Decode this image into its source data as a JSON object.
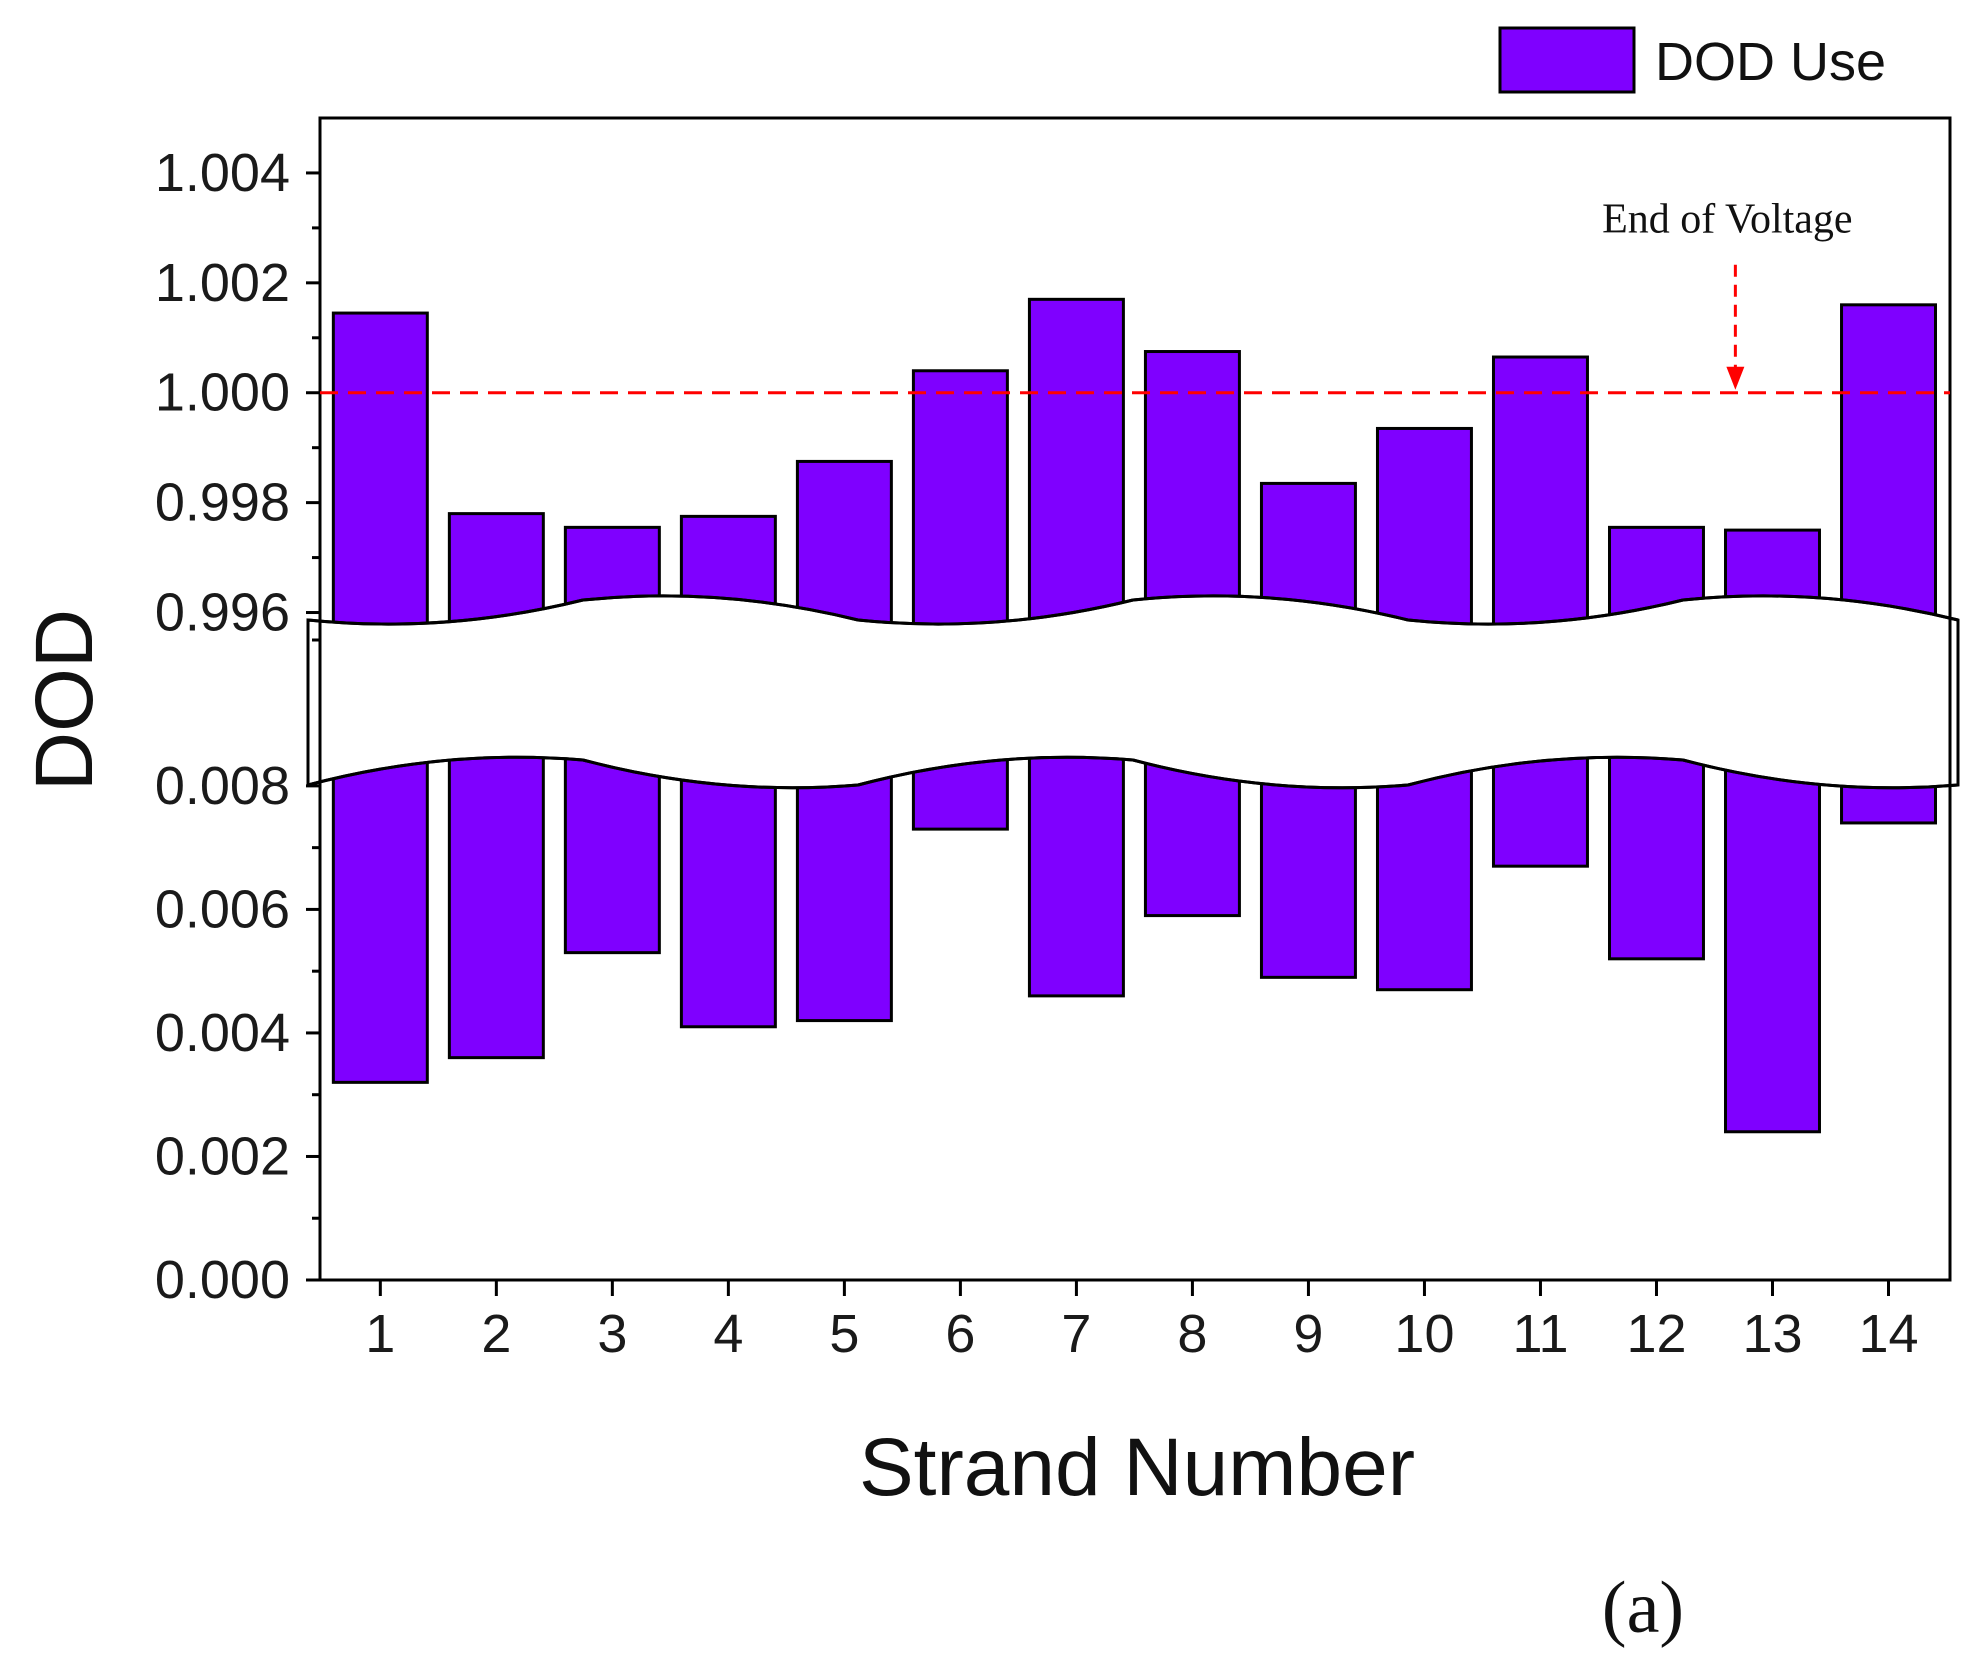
{
  "chart_data": {
    "type": "bar",
    "title": "",
    "xlabel": "Strand Number",
    "ylabel": "DOD",
    "panel_label": "(a)",
    "legend": {
      "label": "DOD Use",
      "placement": "top-right"
    },
    "categories": [
      "1",
      "2",
      "3",
      "4",
      "5",
      "6",
      "7",
      "8",
      "9",
      "10",
      "11",
      "12",
      "13",
      "14"
    ],
    "series": [
      {
        "name": "DOD Use",
        "color": "#7f00ff",
        "values": [
          1.00145,
          0.9978,
          0.99755,
          0.99775,
          0.99875,
          1.0004,
          1.0017,
          1.00075,
          0.99835,
          0.99935,
          1.00065,
          0.99755,
          0.9975,
          1.0016
        ],
        "lower_segment_values": [
          0.0032,
          0.0036,
          0.0053,
          0.0041,
          0.0042,
          0.0073,
          0.0046,
          0.0059,
          0.0049,
          0.0047,
          0.0067,
          0.0052,
          0.0024,
          0.0074
        ]
      }
    ],
    "axis_break": {
      "lower_range": [
        0.0,
        0.0085
      ],
      "upper_range": [
        0.9955,
        1.005
      ]
    },
    "y_ticks_lower": [
      "0.000",
      "0.002",
      "0.004",
      "0.006",
      "0.008"
    ],
    "y_ticks_upper": [
      "0.996",
      "0.998",
      "1.000",
      "1.002",
      "1.004"
    ],
    "reference_line": {
      "y": 1.0,
      "label": "End of Voltage",
      "label_near_category": "13",
      "color": "#ff0000",
      "style": "dashed"
    },
    "grid": false
  }
}
